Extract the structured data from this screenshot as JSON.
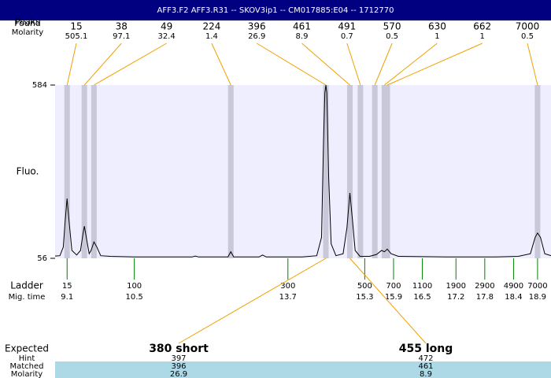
{
  "chart_data": {
    "type": "electropherogram",
    "title": "AFF3.F2  AFF3.R31 -- SKOV3ip1 -- CM017885:E04 -- 1712770",
    "ylabel": "Fluo.",
    "ylim": [
      56,
      584
    ],
    "yticks": [
      56,
      584
    ],
    "xlim": [
      8.85,
      19.18
    ],
    "trace": {
      "color": "#000000",
      "x": [
        8.85,
        8.95,
        9.02,
        9.06,
        9.1,
        9.14,
        9.2,
        9.3,
        9.38,
        9.43,
        9.46,
        9.5,
        9.56,
        9.6,
        9.66,
        9.72,
        9.8,
        10.0,
        10.5,
        11.0,
        11.7,
        11.77,
        11.84,
        12.45,
        12.51,
        12.57,
        13.1,
        13.17,
        13.25,
        14.0,
        14.3,
        14.4,
        14.44,
        14.47,
        14.49,
        14.51,
        14.55,
        14.6,
        14.7,
        14.85,
        14.93,
        14.99,
        15.04,
        15.1,
        15.2,
        15.4,
        15.55,
        15.65,
        15.71,
        15.77,
        15.85,
        16.0,
        17.0,
        18.0,
        18.5,
        18.75,
        18.85,
        18.9,
        18.96,
        19.05,
        19.18
      ],
      "values": [
        63,
        64,
        90,
        170,
        238,
        170,
        80,
        66,
        80,
        130,
        154,
        120,
        70,
        80,
        106,
        90,
        64,
        62,
        60,
        60,
        60,
        63,
        60,
        60,
        76,
        60,
        60,
        66,
        60,
        60,
        64,
        120,
        400,
        560,
        584,
        560,
        300,
        100,
        64,
        70,
        150,
        255,
        180,
        80,
        62,
        62,
        68,
        80,
        76,
        84,
        70,
        62,
        60,
        60,
        62,
        70,
        120,
        133,
        120,
        70,
        64
      ]
    },
    "peaks": {
      "found_label": "Found",
      "peaks_label": "Peaks",
      "molarity_label": "Molarity",
      "sizes": [
        15,
        38,
        49,
        224,
        396,
        461,
        491,
        570,
        630,
        662,
        7000
      ],
      "molarities": [
        505.1,
        97.1,
        32.4,
        1.4,
        26.9,
        8.9,
        0.7,
        0.5,
        1,
        1,
        0.5
      ],
      "times": [
        9.1,
        9.46,
        9.66,
        12.51,
        14.49,
        14.99,
        15.21,
        15.51,
        15.71,
        15.77,
        18.9
      ]
    },
    "ladder": {
      "label": "Ladder",
      "time_label": "Mig. time",
      "sizes": [
        15,
        100,
        300,
        500,
        700,
        1100,
        1900,
        2900,
        4900,
        7000
      ],
      "times": [
        9.1,
        10.5,
        13.7,
        15.3,
        15.9,
        16.5,
        17.2,
        17.8,
        18.4,
        18.9
      ]
    },
    "expected": {
      "label": "Expected",
      "hint_label": "Hint",
      "matched_label": "Matched",
      "molarity_label": "Molarity",
      "items": [
        {
          "name": "380 short",
          "hint": 397,
          "matched": 396,
          "molarity": 26.9
        },
        {
          "name": "455 long",
          "hint": 472,
          "matched": 461,
          "molarity": 8.9
        }
      ]
    }
  }
}
